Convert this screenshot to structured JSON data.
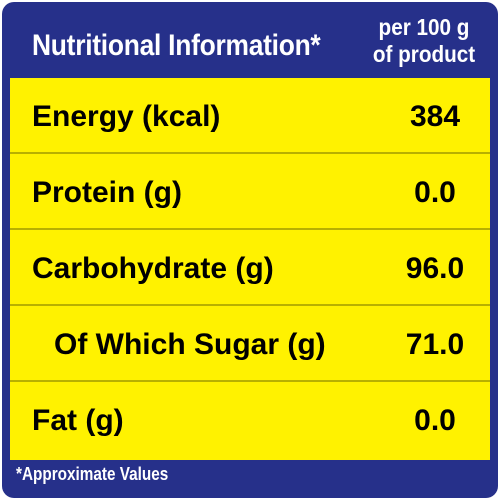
{
  "header": {
    "title": "Nutritional Information*",
    "basis_line1": "per 100 g",
    "basis_line2": "of product"
  },
  "rows": [
    {
      "label": "Energy (kcal)",
      "value": "384"
    },
    {
      "label": "Protein (g)",
      "value": "0.0"
    },
    {
      "label": "Carbohydrate (g)",
      "value": "96.0"
    },
    {
      "label": "Of Which Sugar (g)",
      "value": "71.0"
    },
    {
      "label": "Fat (g)",
      "value": "0.0"
    }
  ],
  "footnote": "*Approximate Values",
  "colors": {
    "panel_background": "#26308a",
    "table_background": "#fff200",
    "header_text": "#ffffff",
    "body_text": "#000000"
  }
}
